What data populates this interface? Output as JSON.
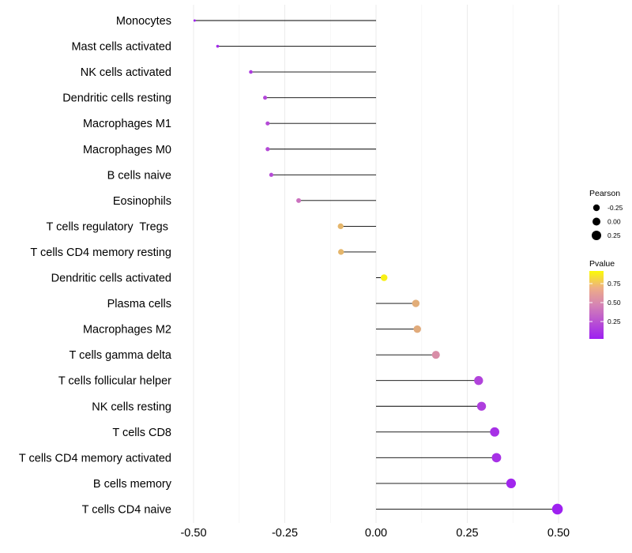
{
  "chart_data": {
    "type": "lollipop",
    "title": "",
    "xlabel": "",
    "ylabel": "",
    "xlim": [
      -0.5,
      0.5
    ],
    "x_ticks": [
      "-0.50",
      "-0.25",
      "0.00",
      "0.25",
      "0.50"
    ],
    "x_tick_values": [
      -0.5,
      -0.25,
      0.0,
      0.25,
      0.5
    ],
    "categories": [
      "Monocytes",
      "Mast cells activated",
      "NK cells activated",
      "Dendritic cells resting",
      "Macrophages M1",
      "Macrophages M0",
      "B cells naive",
      "Eosinophils",
      "T cells regulatory  Tregs ",
      "T cells CD4 memory resting",
      "Dendritic cells activated",
      "Plasma cells",
      "Macrophages M2",
      "T cells gamma delta",
      "T cells follicular helper",
      "NK cells resting",
      "T cells CD8",
      "T cells CD4 memory activated",
      "B cells memory",
      "T cells CD4 naive"
    ],
    "pearson": [
      -0.497,
      -0.434,
      -0.343,
      -0.304,
      -0.297,
      -0.297,
      -0.287,
      -0.212,
      -0.097,
      -0.096,
      0.022,
      0.109,
      0.113,
      0.164,
      0.281,
      0.289,
      0.325,
      0.33,
      0.37,
      0.497
    ],
    "pvalue": [
      0.02,
      0.05,
      0.13,
      0.18,
      0.19,
      0.19,
      0.2,
      0.37,
      0.68,
      0.68,
      0.95,
      0.64,
      0.63,
      0.49,
      0.16,
      0.14,
      0.08,
      0.08,
      0.03,
      0.01
    ],
    "gridlines": true,
    "legend": {
      "size_title": "Pearson",
      "size_labels": [
        "-0.25",
        "0.00",
        "0.25"
      ],
      "color_title": "Pvalue",
      "color_labels": [
        "0.75",
        "0.50",
        "0.25"
      ],
      "color_low": "#9d1ff1",
      "color_mid": "#d584b4",
      "color_high": "#fbfb06",
      "placement": "right"
    }
  }
}
